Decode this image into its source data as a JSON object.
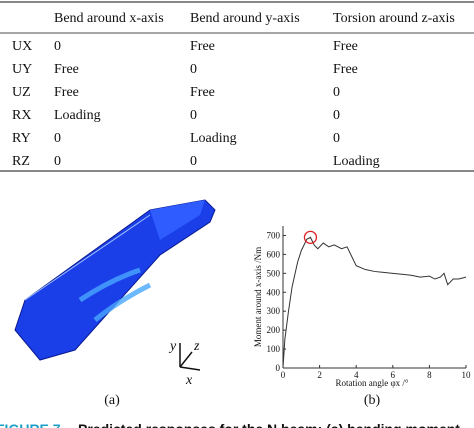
{
  "table": {
    "header": [
      "Bend around x-axis",
      "Bend around y-axis",
      "Torsion around z-axis"
    ],
    "rows": [
      [
        "UX",
        "0",
        "Free",
        "Free"
      ],
      [
        "UY",
        "Free",
        "0",
        "Free"
      ],
      [
        "UZ",
        "Free",
        "Free",
        "0"
      ],
      [
        "RX",
        "Loading",
        "0",
        "0"
      ],
      [
        "RY",
        "0",
        "Loading",
        "0"
      ],
      [
        "RZ",
        "0",
        "0",
        "Loading"
      ]
    ]
  },
  "figure_a": {
    "axes": [
      "y",
      "z",
      "x"
    ],
    "label": "(a)"
  },
  "chart_data": {
    "type": "line",
    "label": "(b)",
    "ylabel": "Moment around x-axis /Nm",
    "xlabel": "Rotation angle φx /°",
    "x": [
      0,
      0.1,
      0.3,
      0.5,
      0.8,
      1.0,
      1.3,
      1.5,
      1.7,
      1.9,
      2.2,
      2.5,
      2.8,
      3.2,
      3.5,
      3.7,
      4.0,
      4.5,
      5,
      5.5,
      6,
      6.5,
      7,
      7.5,
      8,
      8.3,
      8.6,
      8.8,
      9,
      9.3,
      9.6,
      10
    ],
    "series": [
      {
        "color": "#333333",
        "values": [
          0,
          150,
          300,
          430,
          560,
          620,
          680,
          690,
          650,
          630,
          660,
          640,
          650,
          630,
          640,
          600,
          540,
          520,
          510,
          505,
          500,
          495,
          490,
          480,
          485,
          470,
          480,
          500,
          440,
          470,
          470,
          480
        ]
      }
    ],
    "highlight_color": "#e02020",
    "xlim": [
      0,
      10
    ],
    "ylim": [
      0,
      750
    ],
    "xticks": [
      0,
      2,
      4,
      6,
      8,
      10
    ],
    "yticks": [
      0,
      100,
      200,
      300,
      400,
      500,
      600,
      700
    ]
  },
  "caption": {
    "number": "FIGURE 7",
    "text": "Predicted responses for the N beam: (a) bending moment"
  }
}
